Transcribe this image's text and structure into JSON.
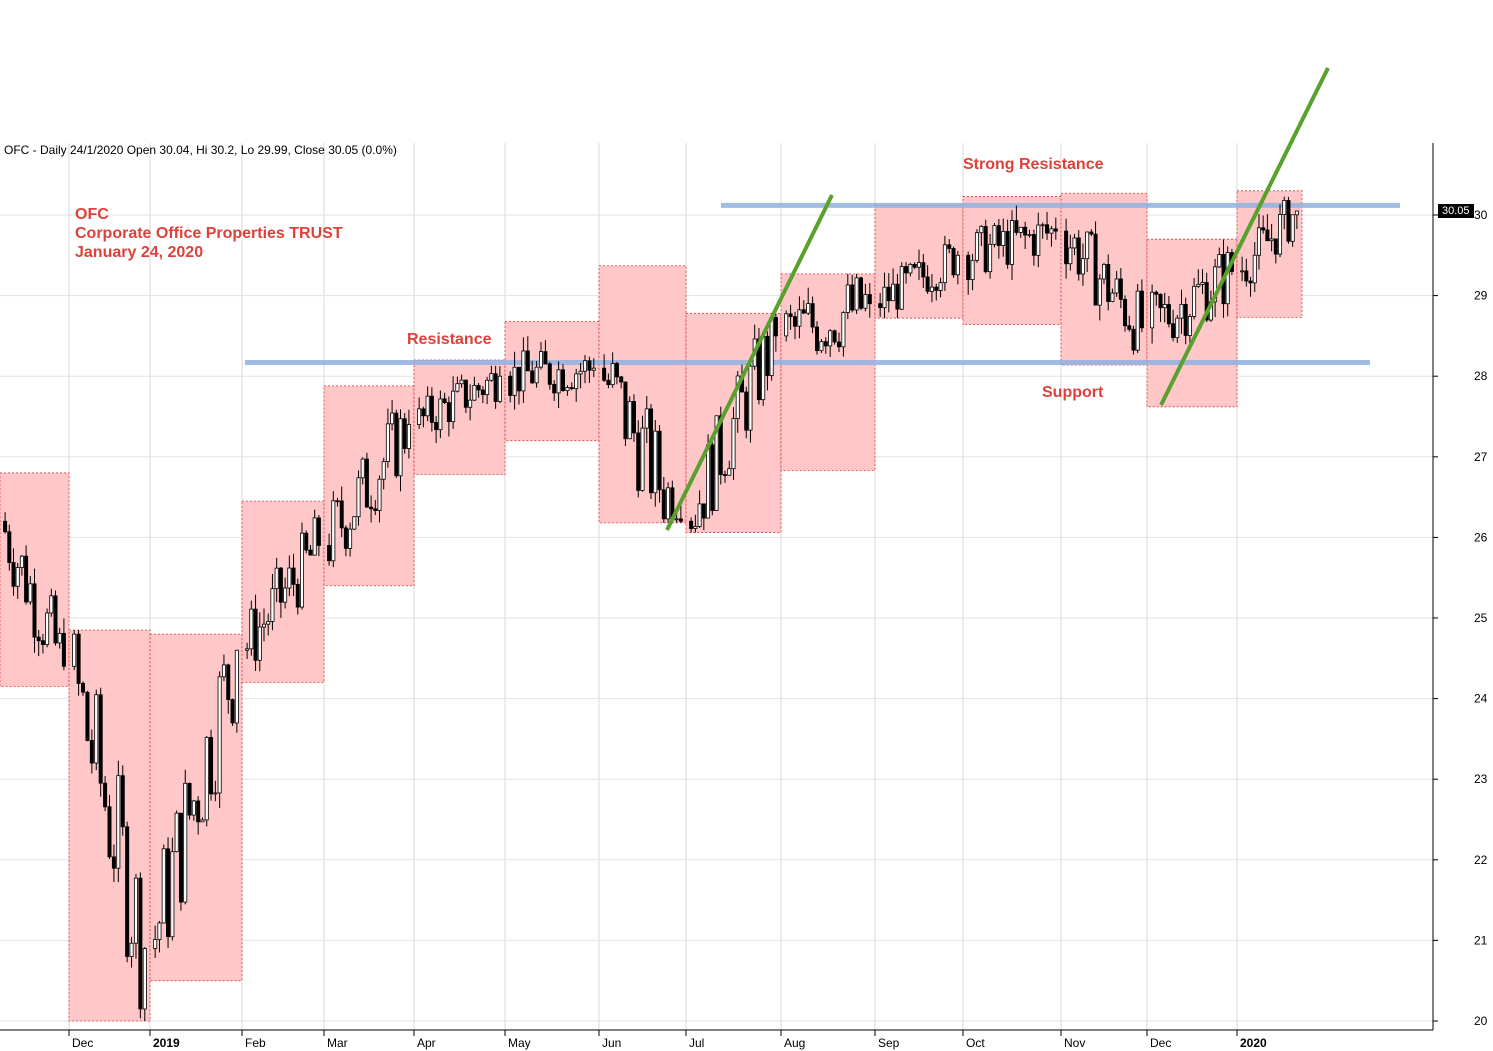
{
  "header": "OFC - Daily 24/1/2020 Open 30.04, Hi 30.2, Lo 29.99, Close 30.05 (0.0%)",
  "title_lines": [
    "OFC",
    "Corporate Office Properties TRUST",
    "January 24, 2020"
  ],
  "annotations": {
    "resistance": "Resistance",
    "strong_resistance": "Strong Resistance",
    "support": "Support"
  },
  "last_price_label": "30.05",
  "colors": {
    "box_fill": "#ffbdbd",
    "box_border": "#e03a3a",
    "hline": "#8fb0e0",
    "trend": "#5aa02c",
    "candle": "#000000",
    "annotation": "#e0403a"
  },
  "chart_data": {
    "type": "candlestick",
    "title": "OFC - Daily 24/1/2020 Open 30.04, Hi 30.2, Lo 29.99, Close 30.05 (0.0%)",
    "x_labels": [
      "Dec",
      "2019",
      "Feb",
      "Mar",
      "Apr",
      "May",
      "Jun",
      "Jul",
      "Aug",
      "Sep",
      "Oct",
      "Nov",
      "Dec",
      "2020"
    ],
    "y_ticks": [
      20,
      21,
      22,
      23,
      24,
      25,
      26,
      27,
      28,
      29,
      30
    ],
    "ylim": [
      19.95,
      30.95
    ],
    "grid": true,
    "last_close": 30.05,
    "monthly_ranges": [
      {
        "period": "Nov 2018",
        "high": 26.8,
        "low": 24.15
      },
      {
        "period": "Dec 2018",
        "high": 24.85,
        "low": 20.0
      },
      {
        "period": "Jan 2019",
        "high": 24.8,
        "low": 20.5
      },
      {
        "period": "Feb 2019",
        "high": 26.45,
        "low": 24.2
      },
      {
        "period": "Mar 2019",
        "high": 27.88,
        "low": 25.4
      },
      {
        "period": "Apr 2019",
        "high": 28.2,
        "low": 26.78
      },
      {
        "period": "May 2019",
        "high": 28.68,
        "low": 27.2
      },
      {
        "period": "Jun 2019",
        "high": 29.37,
        "low": 26.18
      },
      {
        "period": "Jul 2019",
        "high": 28.78,
        "low": 26.06
      },
      {
        "period": "Aug 2019",
        "high": 29.27,
        "low": 26.83
      },
      {
        "period": "Sep 2019",
        "high": 30.12,
        "low": 28.72
      },
      {
        "period": "Oct 2019",
        "high": 30.23,
        "low": 28.64
      },
      {
        "period": "Nov 2019",
        "high": 30.27,
        "low": 28.14
      },
      {
        "period": "Dec 2019",
        "high": 29.7,
        "low": 27.62
      },
      {
        "period": "Jan 2020",
        "high": 30.3,
        "low": 28.73
      }
    ],
    "horizontal_lines": [
      {
        "name": "Resistance",
        "value": 28.17
      },
      {
        "name": "Strong Resistance",
        "value": 30.12
      }
    ],
    "trend_lines": [
      {
        "from": {
          "month": "Jun 2019",
          "price": 26.1
        },
        "to": {
          "month": "Aug 2019",
          "price": 30.2
        }
      },
      {
        "from": {
          "month": "Dec 2019",
          "price": 27.65
        },
        "to": {
          "month": "Jan 2020",
          "price": 31.9
        }
      }
    ],
    "monthly_closes": [
      {
        "period": "Nov 2018",
        "close": 24.4
      },
      {
        "period": "Dec 2018",
        "close": 20.9
      },
      {
        "period": "Jan 2019",
        "close": 24.6
      },
      {
        "period": "Feb 2019",
        "close": 25.9
      },
      {
        "period": "Mar 2019",
        "close": 27.4
      },
      {
        "period": "Apr 2019",
        "close": 28.0
      },
      {
        "period": "May 2019",
        "close": 28.1
      },
      {
        "period": "Jun 2019",
        "close": 26.2
      },
      {
        "period": "Jul 2019",
        "close": 28.5
      },
      {
        "period": "Aug 2019",
        "close": 28.9
      },
      {
        "period": "Sep 2019",
        "close": 29.5
      },
      {
        "period": "Oct 2019",
        "close": 29.8
      },
      {
        "period": "Nov 2019",
        "close": 28.6
      },
      {
        "period": "Dec 2019",
        "close": 29.3
      },
      {
        "period": "Jan 2020",
        "close": 30.05
      }
    ]
  }
}
